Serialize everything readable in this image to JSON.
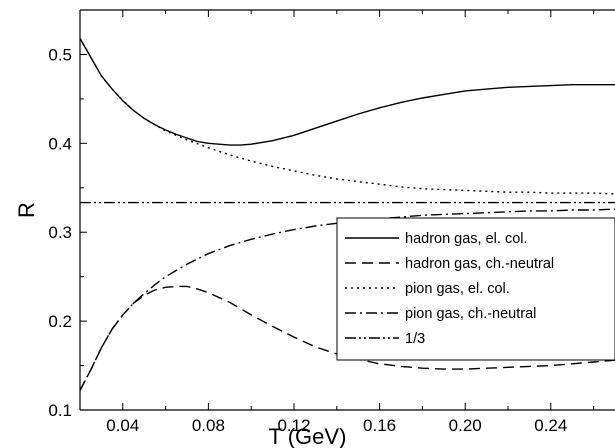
{
  "chart_data": {
    "type": "line",
    "xlabel": "T (GeV)",
    "ylabel": "R",
    "xlim": [
      0.02,
      0.27
    ],
    "ylim": [
      0.1,
      0.55
    ],
    "xticks": [
      0.04,
      0.08,
      0.12,
      0.16,
      0.2,
      0.24
    ],
    "xtick_labels": [
      "0.04",
      "0.08",
      "0.12",
      "0.16",
      "0.20",
      "0.24"
    ],
    "yticks": [
      0.1,
      0.2,
      0.3,
      0.4,
      0.5
    ],
    "ytick_labels": [
      "0.1",
      "0.2",
      "0.3",
      "0.4",
      "0.5"
    ],
    "grid": false,
    "legend_position": "lower-right",
    "series": [
      {
        "name": "hadron gas, el. col.",
        "style": "solid",
        "x": [
          0.02,
          0.025,
          0.03,
          0.035,
          0.04,
          0.045,
          0.05,
          0.055,
          0.06,
          0.065,
          0.07,
          0.075,
          0.08,
          0.085,
          0.09,
          0.095,
          0.1,
          0.11,
          0.12,
          0.13,
          0.14,
          0.15,
          0.16,
          0.17,
          0.18,
          0.19,
          0.2,
          0.21,
          0.22,
          0.23,
          0.24,
          0.25,
          0.26,
          0.27
        ],
        "y": [
          0.518,
          0.497,
          0.476,
          0.461,
          0.448,
          0.437,
          0.428,
          0.421,
          0.415,
          0.41,
          0.406,
          0.402,
          0.4,
          0.399,
          0.398,
          0.398,
          0.399,
          0.403,
          0.409,
          0.417,
          0.425,
          0.433,
          0.44,
          0.446,
          0.451,
          0.455,
          0.459,
          0.461,
          0.463,
          0.464,
          0.465,
          0.466,
          0.466,
          0.466
        ]
      },
      {
        "name": "hadron gas, ch.-neutral",
        "style": "dashed",
        "x": [
          0.02,
          0.025,
          0.03,
          0.035,
          0.04,
          0.045,
          0.05,
          0.055,
          0.06,
          0.065,
          0.07,
          0.075,
          0.08,
          0.09,
          0.1,
          0.11,
          0.12,
          0.13,
          0.14,
          0.15,
          0.16,
          0.17,
          0.18,
          0.19,
          0.2,
          0.21,
          0.22,
          0.23,
          0.24,
          0.25,
          0.26,
          0.27
        ],
        "y": [
          0.122,
          0.145,
          0.17,
          0.191,
          0.207,
          0.22,
          0.229,
          0.235,
          0.238,
          0.239,
          0.239,
          0.236,
          0.232,
          0.221,
          0.207,
          0.194,
          0.182,
          0.171,
          0.163,
          0.157,
          0.152,
          0.149,
          0.147,
          0.146,
          0.146,
          0.147,
          0.148,
          0.149,
          0.15,
          0.152,
          0.154,
          0.156
        ]
      },
      {
        "name": "pion gas, el. col.",
        "style": "dotted",
        "x": [
          0.02,
          0.025,
          0.03,
          0.035,
          0.04,
          0.045,
          0.05,
          0.055,
          0.06,
          0.07,
          0.08,
          0.09,
          0.1,
          0.11,
          0.12,
          0.13,
          0.14,
          0.15,
          0.16,
          0.17,
          0.18,
          0.19,
          0.2,
          0.21,
          0.22,
          0.23,
          0.24,
          0.25,
          0.26,
          0.27
        ],
        "y": [
          0.518,
          0.497,
          0.476,
          0.461,
          0.448,
          0.437,
          0.428,
          0.421,
          0.414,
          0.404,
          0.395,
          0.387,
          0.38,
          0.374,
          0.369,
          0.364,
          0.36,
          0.357,
          0.354,
          0.351,
          0.349,
          0.348,
          0.347,
          0.346,
          0.345,
          0.345,
          0.344,
          0.344,
          0.344,
          0.343
        ]
      },
      {
        "name": "pion gas, ch.-neutral",
        "style": "dashdot",
        "x": [
          0.02,
          0.025,
          0.03,
          0.035,
          0.04,
          0.045,
          0.05,
          0.055,
          0.06,
          0.07,
          0.08,
          0.09,
          0.1,
          0.11,
          0.12,
          0.13,
          0.14,
          0.15,
          0.16,
          0.17,
          0.18,
          0.19,
          0.2,
          0.21,
          0.22,
          0.23,
          0.24,
          0.25,
          0.26,
          0.27
        ],
        "y": [
          0.122,
          0.145,
          0.17,
          0.191,
          0.207,
          0.22,
          0.231,
          0.241,
          0.25,
          0.264,
          0.276,
          0.285,
          0.292,
          0.298,
          0.303,
          0.307,
          0.31,
          0.313,
          0.315,
          0.317,
          0.319,
          0.32,
          0.321,
          0.322,
          0.323,
          0.324,
          0.324,
          0.325,
          0.325,
          0.326
        ]
      },
      {
        "name": "1/3",
        "style": "dashdotdot",
        "x": [
          0.02,
          0.27
        ],
        "y": [
          0.3333,
          0.3333
        ]
      }
    ]
  }
}
